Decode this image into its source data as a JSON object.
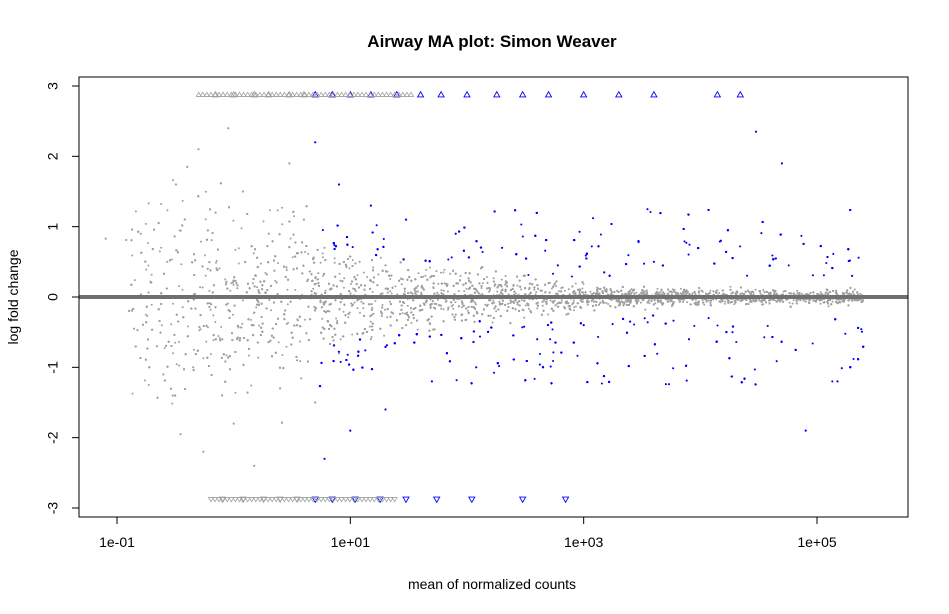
{
  "chart_data": {
    "type": "scatter",
    "title": "Airway MA plot: Simon Weaver",
    "xlabel": "mean of normalized counts",
    "ylabel": "log fold change",
    "x_scale": "log10",
    "xlim": [
      0.05,
      600000
    ],
    "ylim": [
      -3,
      3
    ],
    "x_ticks": [
      {
        "value": 0.1,
        "label": "1e-01"
      },
      {
        "value": 10,
        "label": "1e+01"
      },
      {
        "value": 1000,
        "label": "1e+03"
      },
      {
        "value": 100000,
        "label": "1e+05"
      }
    ],
    "y_ticks": [
      {
        "value": -3,
        "label": "-3"
      },
      {
        "value": -2,
        "label": "-2"
      },
      {
        "value": -1,
        "label": "-1"
      },
      {
        "value": 0,
        "label": "0"
      },
      {
        "value": 1,
        "label": "1"
      },
      {
        "value": 2,
        "label": "2"
      },
      {
        "value": 3,
        "label": "3"
      }
    ],
    "reference_line": {
      "y": 0,
      "color": "#707070"
    },
    "grid": false,
    "colors": {
      "not_significant": "#a0a0a0",
      "significant": "#0000ff",
      "frame": "#000000"
    },
    "series": [
      {
        "color": "#a0a0a0",
        "marker": "dot",
        "points": [
          [
            0.08,
            0.83
          ],
          [
            0.12,
            0.81
          ],
          [
            0.14,
            -0.45
          ],
          [
            0.15,
            -0.47
          ],
          [
            0.16,
            0.9
          ],
          [
            0.22,
            -0.7
          ],
          [
            0.25,
            -1.1
          ],
          [
            0.27,
            0.5
          ],
          [
            0.3,
            -1.4
          ],
          [
            0.32,
            1.6
          ],
          [
            0.35,
            -1.95
          ],
          [
            0.4,
            1.85
          ],
          [
            0.45,
            -1.0
          ],
          [
            0.5,
            2.1
          ],
          [
            0.55,
            -2.2
          ],
          [
            0.6,
            0.4
          ],
          [
            0.7,
            1.2
          ],
          [
            0.8,
            -0.6
          ],
          [
            0.9,
            2.4
          ],
          [
            1.0,
            -1.8
          ],
          [
            1.2,
            1.5
          ],
          [
            1.5,
            -2.4
          ],
          [
            2.0,
            0.9
          ],
          [
            2.5,
            -1.3
          ],
          [
            3.0,
            1.9
          ],
          [
            3.5,
            -0.9
          ],
          [
            4.0,
            1.1
          ],
          [
            5.0,
            -1.5
          ],
          [
            6.0,
            0.7
          ],
          [
            8.0,
            -0.8
          ],
          [
            12.0,
            0.5
          ],
          [
            15.0,
            -0.6
          ],
          [
            20.0,
            0.45
          ],
          [
            30.0,
            -0.4
          ],
          [
            50.0,
            0.3
          ],
          [
            80.0,
            -0.25
          ],
          [
            150.0,
            0.2
          ],
          [
            300.0,
            -0.18
          ],
          [
            800.0,
            0.15
          ],
          [
            2000.0,
            -0.12
          ],
          [
            6000.0,
            0.1
          ],
          [
            20000.0,
            -0.08
          ],
          [
            60000.0,
            0.05
          ],
          [
            150000.0,
            0.03
          ]
        ]
      },
      {
        "color": "#0000ff",
        "marker": "dot",
        "points": [
          [
            5.0,
            2.2
          ],
          [
            6.0,
            -2.3
          ],
          [
            8.0,
            1.6
          ],
          [
            10.0,
            -1.9
          ],
          [
            15.0,
            1.3
          ],
          [
            20.0,
            -1.6
          ],
          [
            30.0,
            1.1
          ],
          [
            50.0,
            -1.2
          ],
          [
            80.0,
            0.9
          ],
          [
            120.0,
            -1.0
          ],
          [
            200.0,
            0.7
          ],
          [
            400.0,
            -0.6
          ],
          [
            600.0,
            0.45
          ],
          [
            1000.0,
            -0.4
          ],
          [
            1500.0,
            0.35
          ],
          [
            2500.0,
            -0.35
          ],
          [
            4000.0,
            0.5
          ],
          [
            8000.0,
            -0.6
          ],
          [
            15000.0,
            0.8
          ],
          [
            30000.0,
            2.35
          ],
          [
            50000.0,
            1.9
          ],
          [
            80000.0,
            -1.9
          ],
          [
            150000.0,
            -1.2
          ],
          [
            200000.0,
            0.3
          ]
        ]
      },
      {
        "color": "#a0a0a0",
        "marker": "triangle-up",
        "points": [
          [
            0.7,
            2.88
          ],
          [
            1.0,
            2.88
          ],
          [
            1.5,
            2.88
          ],
          [
            2.0,
            2.88
          ],
          [
            3.0,
            2.88
          ],
          [
            4.0,
            2.88
          ]
        ]
      },
      {
        "color": "#a0a0a0",
        "marker": "triangle-down",
        "points": [
          [
            0.8,
            -2.88
          ],
          [
            1.2,
            -2.88
          ],
          [
            1.8,
            -2.88
          ],
          [
            2.5,
            -2.88
          ],
          [
            3.5,
            -2.88
          ]
        ]
      },
      {
        "color": "#0000ff",
        "marker": "triangle-up",
        "points": [
          [
            5.0,
            2.88
          ],
          [
            7.0,
            2.88
          ],
          [
            10.0,
            2.88
          ],
          [
            15.0,
            2.88
          ],
          [
            25.0,
            2.88
          ],
          [
            40.0,
            2.88
          ],
          [
            60.0,
            2.88
          ],
          [
            100.0,
            2.88
          ],
          [
            180.0,
            2.88
          ],
          [
            300.0,
            2.88
          ],
          [
            500.0,
            2.88
          ],
          [
            1000.0,
            2.88
          ],
          [
            2000.0,
            2.88
          ],
          [
            4000.0,
            2.88
          ],
          [
            14000.0,
            2.88
          ],
          [
            22000.0,
            2.88
          ]
        ]
      },
      {
        "color": "#0000ff",
        "marker": "triangle-down",
        "points": [
          [
            5.0,
            -2.88
          ],
          [
            7.0,
            -2.88
          ],
          [
            11.0,
            -2.88
          ],
          [
            18.0,
            -2.88
          ],
          [
            30.0,
            -2.88
          ],
          [
            55.0,
            -2.88
          ],
          [
            110.0,
            -2.88
          ],
          [
            300.0,
            -2.88
          ],
          [
            700.0,
            -2.88
          ]
        ]
      }
    ]
  }
}
